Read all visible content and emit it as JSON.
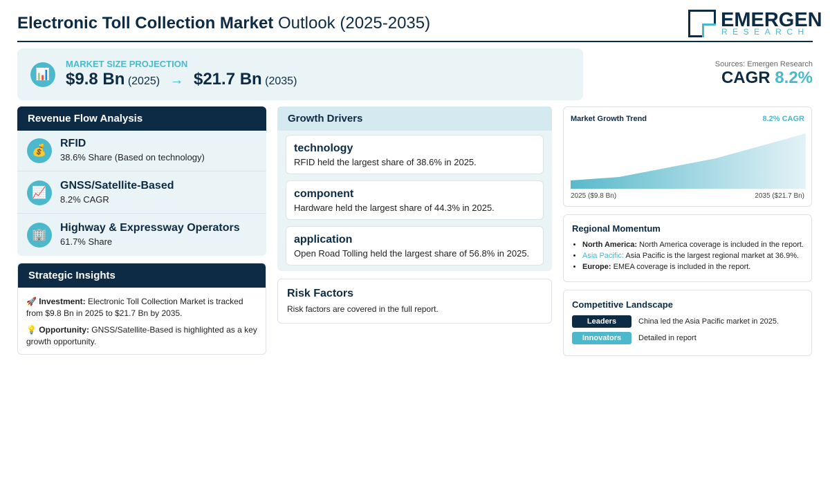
{
  "header": {
    "title_bold": "Electronic Toll Collection Market",
    "title_rest": "Outlook (2025-2035)",
    "logo_main": "EMERGEN",
    "logo_sub": "RESEARCH"
  },
  "projection": {
    "icon": "📊",
    "label": "MARKET SIZE PROJECTION",
    "start_value": "$9.8 Bn",
    "start_year": "(2025)",
    "arrow": "→",
    "end_value": "$21.7 Bn",
    "end_year": "(2035)",
    "source": "Sources: Emergen Research",
    "cagr_label": "CAGR",
    "cagr_value": "8.2%"
  },
  "revenue_flow": {
    "title": "Revenue Flow Analysis",
    "items": [
      {
        "icon": "💰",
        "name": "RFID",
        "detail": "38.6% Share (Based on technology)"
      },
      {
        "icon": "📈",
        "name": "GNSS/Satellite-Based",
        "detail": "8.2% CAGR"
      },
      {
        "icon": "🏢",
        "name": "Highway & Expressway Operators",
        "detail": "61.7% Share"
      }
    ]
  },
  "strategic_insights": {
    "title": "Strategic Insights",
    "items": [
      {
        "icon": "🚀",
        "label": "Investment:",
        "text": "Electronic Toll Collection Market is tracked from $9.8 Bn in 2025 to $21.7 Bn by 2035."
      },
      {
        "icon": "💡",
        "label": "Opportunity:",
        "text": "GNSS/Satellite-Based is highlighted as a key growth opportunity."
      }
    ]
  },
  "growth_drivers": {
    "title": "Growth Drivers",
    "items": [
      {
        "name": "technology",
        "text": "RFID held the largest share of 38.6% in 2025."
      },
      {
        "name": "component",
        "text": "Hardware held the largest share of 44.3% in 2025."
      },
      {
        "name": "application",
        "text": "Open Road Tolling held the largest share of 56.8% in 2025."
      }
    ]
  },
  "risk_factors": {
    "title": "Risk Factors",
    "text": "Risk factors are covered in the full report."
  },
  "trend": {
    "title": "Market Growth Trend",
    "badge": "8.2% CAGR",
    "start_label": "2025 ($9.8 Bn)",
    "end_label": "2035 ($21.7 Bn)"
  },
  "regional": {
    "title": "Regional Momentum",
    "items": [
      {
        "label": "North America:",
        "text": "North America coverage is included in the report."
      },
      {
        "label": "Asia Pacific:",
        "text": "Asia Pacific is the largest regional market at 36.9%."
      },
      {
        "label": "Europe:",
        "text": "EMEA coverage is included in the report."
      }
    ]
  },
  "competitive": {
    "title": "Competitive Landscape",
    "items": [
      {
        "tag": "Leaders",
        "text": "China led the Asia Pacific market in 2025."
      },
      {
        "tag": "Innovators",
        "text": "Detailed in report"
      }
    ]
  }
}
